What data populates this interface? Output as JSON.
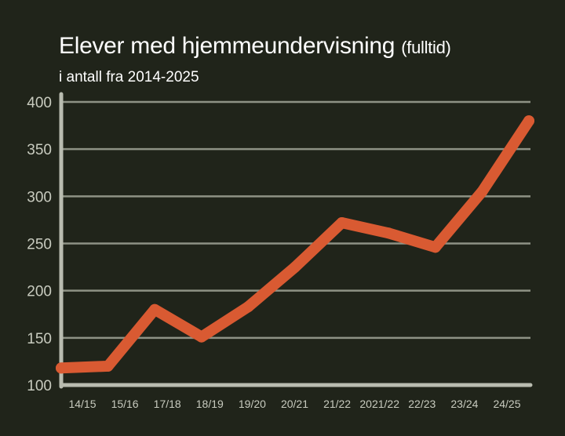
{
  "header": {
    "title": "Elever med hjemmeundervisning",
    "title_suffix": "(fulltid)",
    "subtitle": "i antall fra 2014-2025"
  },
  "colors": {
    "background": "#20241a",
    "grid": "#8e9285",
    "axis": "#b9bcb0",
    "line": "#d95a32",
    "text": "#ffffff",
    "tick_text": "#c8cbbf"
  },
  "chart_data": {
    "type": "line",
    "title": "Elever med hjemmeundervisning (fulltid)",
    "subtitle": "i antall fra 2014-2025",
    "xlabel": "",
    "ylabel": "",
    "categories": [
      "14/15",
      "15/16",
      "17/18",
      "18/19",
      "19/20",
      "20/21",
      "21/22",
      "2021/22",
      "22/23",
      "23/24",
      "24/25"
    ],
    "series": [
      {
        "values": [
          118,
          120,
          180,
          151,
          183,
          225,
          272,
          261,
          246,
          305,
          380
        ]
      }
    ],
    "yticks": [
      100,
      150,
      200,
      250,
      300,
      350,
      400
    ],
    "ylim": [
      100,
      400
    ],
    "grid": true,
    "legend": "none"
  }
}
